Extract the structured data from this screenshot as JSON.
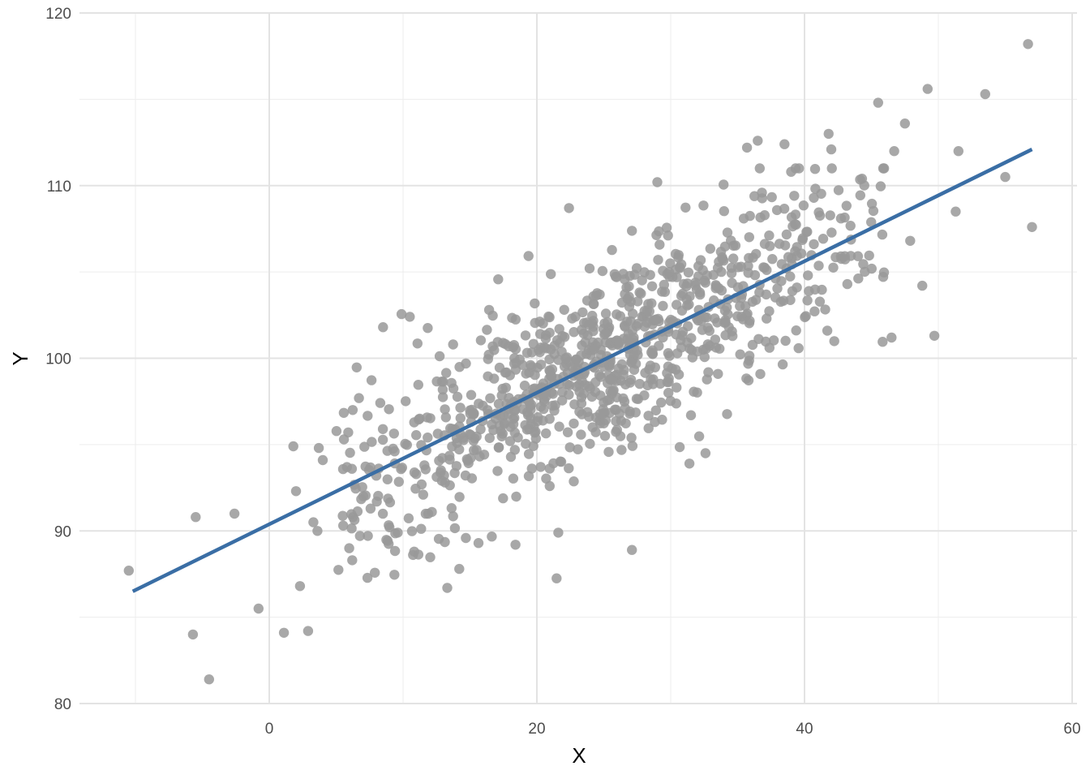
{
  "chart_data": {
    "type": "scatter",
    "title": "",
    "xlabel": "X",
    "ylabel": "Y",
    "xlim": [
      -11,
      60
    ],
    "ylim": [
      80,
      120
    ],
    "x_ticks": [
      0,
      20,
      40,
      60
    ],
    "y_ticks": [
      80,
      90,
      100,
      110,
      120
    ],
    "x_tick_labels": [
      "0",
      "20",
      "40",
      "60"
    ],
    "y_tick_labels": [
      "80",
      "90",
      "100",
      "110",
      "120"
    ],
    "grid": true,
    "legend": "none",
    "point_color": "#999999",
    "line_color": "#3a6ea5",
    "regression_line": {
      "x": [
        -10.2,
        57.0
      ],
      "y": [
        86.5,
        112.1
      ]
    },
    "highlighted_points": [
      {
        "x": -10.5,
        "y": 87.7
      },
      {
        "x": -5.7,
        "y": 84.0
      },
      {
        "x": -5.5,
        "y": 90.8
      },
      {
        "x": -4.5,
        "y": 81.4
      },
      {
        "x": -2.6,
        "y": 91.0
      },
      {
        "x": -0.8,
        "y": 85.5
      },
      {
        "x": 1.1,
        "y": 84.1
      },
      {
        "x": 1.8,
        "y": 94.9
      },
      {
        "x": 2.0,
        "y": 92.3
      },
      {
        "x": 2.3,
        "y": 86.8
      },
      {
        "x": 2.9,
        "y": 84.2
      },
      {
        "x": 3.3,
        "y": 90.5
      },
      {
        "x": 3.6,
        "y": 90.0
      },
      {
        "x": 3.7,
        "y": 94.8
      },
      {
        "x": 4.0,
        "y": 94.1
      },
      {
        "x": 13.3,
        "y": 86.7
      },
      {
        "x": 14.2,
        "y": 87.8
      },
      {
        "x": 27.1,
        "y": 88.9
      },
      {
        "x": 39.0,
        "y": 110.8
      },
      {
        "x": 41.8,
        "y": 113.0
      },
      {
        "x": 42.0,
        "y": 112.1
      },
      {
        "x": 45.5,
        "y": 114.8
      },
      {
        "x": 46.5,
        "y": 101.2
      },
      {
        "x": 46.7,
        "y": 112.0
      },
      {
        "x": 47.5,
        "y": 113.6
      },
      {
        "x": 48.8,
        "y": 104.2
      },
      {
        "x": 49.2,
        "y": 115.6
      },
      {
        "x": 49.7,
        "y": 101.3
      },
      {
        "x": 51.3,
        "y": 108.5
      },
      {
        "x": 51.5,
        "y": 112.0
      },
      {
        "x": 53.5,
        "y": 115.3
      },
      {
        "x": 55.0,
        "y": 110.5
      },
      {
        "x": 56.7,
        "y": 118.2
      },
      {
        "x": 57.0,
        "y": 107.6
      },
      {
        "x": 47.9,
        "y": 106.8
      },
      {
        "x": 44.3,
        "y": 110.4
      },
      {
        "x": 41.7,
        "y": 101.6
      },
      {
        "x": 38.5,
        "y": 112.4
      },
      {
        "x": 36.5,
        "y": 112.6
      },
      {
        "x": 35.7,
        "y": 112.2
      },
      {
        "x": 31.4,
        "y": 93.9
      },
      {
        "x": 32.6,
        "y": 94.5
      },
      {
        "x": 21.6,
        "y": 89.9
      },
      {
        "x": 18.4,
        "y": 89.2
      },
      {
        "x": 22.4,
        "y": 108.7
      },
      {
        "x": 29.0,
        "y": 110.2
      },
      {
        "x": 8.5,
        "y": 101.8
      },
      {
        "x": 10.5,
        "y": 102.4
      },
      {
        "x": 6.2,
        "y": 88.3
      },
      {
        "x": 9.6,
        "y": 89.9
      }
    ],
    "cluster": {
      "count": 950,
      "x_mean": 25,
      "x_sd": 10,
      "slope": 0.38,
      "intercept": 90.4,
      "residual_sd": 2.8
    }
  }
}
